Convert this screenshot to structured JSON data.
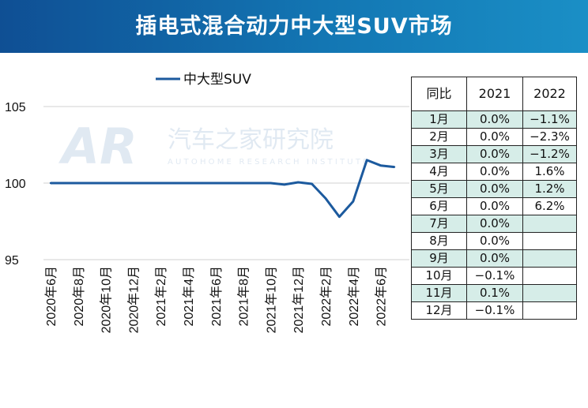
{
  "header": {
    "title": "插电式混合动力中大型SUV市场"
  },
  "watermark": {
    "logo": "AR",
    "name": "汽车之家研究院",
    "subtitle": "AUTOHOME RESEARCH INSTITUTE"
  },
  "colors": {
    "line": "#1c5a9e",
    "header_start": "#0f4f94",
    "header_end": "#1a8fc6",
    "row_shade": "#d6ede8"
  },
  "chart_data": {
    "type": "line",
    "title": "",
    "xlabel": "",
    "ylabel": "",
    "series": [
      {
        "name": "中大型SUV",
        "values": [
          100.0,
          100.0,
          100.0,
          100.0,
          100.0,
          100.0,
          100.0,
          100.0,
          100.0,
          100.0,
          100.0,
          100.0,
          100.0,
          100.0,
          100.0,
          100.0,
          100.0,
          99.9,
          100.05,
          99.95,
          99.0,
          97.8,
          98.8,
          101.5,
          101.15,
          101.05
        ]
      }
    ],
    "x": [
      "2020年6月",
      "2020年7月",
      "2020年8月",
      "2020年9月",
      "2020年10月",
      "2020年11月",
      "2020年12月",
      "2021年1月",
      "2021年2月",
      "2021年3月",
      "2021年4月",
      "2021年5月",
      "2021年6月",
      "2021年7月",
      "2021年8月",
      "2021年9月",
      "2021年10月",
      "2021年11月",
      "2021年12月",
      "2022年1月",
      "2022年2月",
      "2022年3月",
      "2022年4月",
      "2022年5月",
      "2022年6月",
      "2022年7月"
    ],
    "x_tick_labels": [
      "2020年6月",
      "2020年8月",
      "2020年10月",
      "2020年12月",
      "2021年2月",
      "2021年4月",
      "2021年6月",
      "2021年8月",
      "2021年10月",
      "2021年12月",
      "2022年2月",
      "2022年4月",
      "2022年6月"
    ],
    "y_ticks": [
      95,
      100,
      105
    ],
    "ylim": [
      95,
      105
    ],
    "legend": "top-center",
    "grid": "horizontal"
  },
  "table": {
    "headers": [
      "同比",
      "2021",
      "2022"
    ],
    "rows": [
      [
        "1月",
        "0.0%",
        "−1.1%"
      ],
      [
        "2月",
        "0.0%",
        "−2.3%"
      ],
      [
        "3月",
        "0.0%",
        "−1.2%"
      ],
      [
        "4月",
        "0.0%",
        "1.6%"
      ],
      [
        "5月",
        "0.0%",
        "1.2%"
      ],
      [
        "6月",
        "0.0%",
        "6.2%"
      ],
      [
        "7月",
        "0.0%",
        ""
      ],
      [
        "8月",
        "0.0%",
        ""
      ],
      [
        "9月",
        "0.0%",
        ""
      ],
      [
        "10月",
        "−0.1%",
        ""
      ],
      [
        "11月",
        "0.1%",
        ""
      ],
      [
        "12月",
        "−0.1%",
        ""
      ]
    ]
  }
}
